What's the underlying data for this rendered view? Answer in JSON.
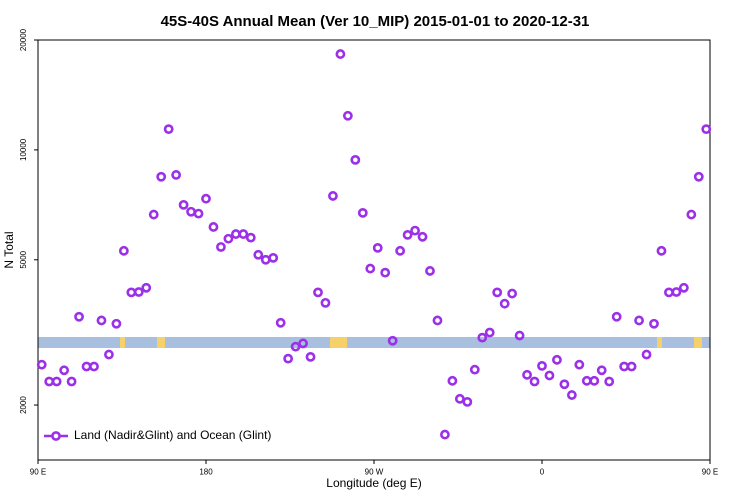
{
  "chart_data": {
    "type": "scatter",
    "title": "45S-40S Annual Mean (Ver 10_MIP)   2015-01-01 to 2020-12-31",
    "x_label": "Longitude (deg E)",
    "y_label": "N Total",
    "x": [
      92,
      96,
      100,
      104,
      108,
      112,
      116,
      120,
      124,
      128,
      132,
      136,
      140,
      144,
      148,
      152,
      156,
      160,
      164,
      168,
      172,
      176,
      180,
      184,
      188,
      192,
      196,
      200,
      204,
      208,
      212,
      216,
      220,
      224,
      228,
      232,
      236,
      240,
      244,
      248,
      252,
      256,
      260,
      264,
      268,
      272,
      276,
      280,
      284,
      288,
      292,
      296,
      300,
      304,
      308,
      312,
      316,
      320,
      324,
      328,
      332,
      336,
      340,
      344,
      348,
      352,
      356,
      360,
      364,
      368,
      372,
      376,
      380,
      384,
      388,
      392,
      396,
      400,
      404,
      408,
      412,
      416,
      420,
      424,
      428,
      432,
      436,
      440,
      444,
      448
    ],
    "series": [
      {
        "name": "Land (Nadir&Glint) and Ocean (Glint)",
        "color": "#9b30e8",
        "values": [
          2580,
          2320,
          2320,
          2490,
          2320,
          3490,
          2550,
          2550,
          3410,
          2750,
          3340,
          5290,
          4070,
          4080,
          4190,
          6650,
          8440,
          11400,
          8540,
          7070,
          6770,
          6690,
          7350,
          6150,
          5420,
          5710,
          5880,
          5880,
          5750,
          5160,
          5000,
          5060,
          3360,
          2680,
          2890,
          2950,
          2710,
          4070,
          3810,
          7480,
          18300,
          12400,
          9390,
          6720,
          4730,
          5390,
          4610,
          3000,
          5290,
          5850,
          6010,
          5780,
          4660,
          3410,
          1660,
          2330,
          2080,
          2040,
          2500,
          3060,
          3160,
          4070,
          3790,
          4040,
          3100,
          2420,
          2320,
          2560,
          2410,
          2660,
          2280,
          2130,
          2580,
          2330,
          2330,
          2490,
          2320,
          3490,
          2550,
          2550,
          3410,
          2750,
          3340,
          5290,
          4070,
          4080,
          4190,
          6650,
          8440,
          11400
        ]
      }
    ],
    "xlim": [
      90,
      450
    ],
    "xticks": [
      {
        "value": 90,
        "label": "90 E"
      },
      180,
      {
        "value": 270,
        "label": "90 W"
      },
      {
        "value": 360,
        "label": "0"
      },
      {
        "value": 450,
        "label": "90 E"
      }
    ],
    "ylim": [
      1414,
      20000
    ],
    "yticks": [
      2000,
      5000,
      10000,
      20000
    ],
    "y_scale": "log",
    "legend": "lower left"
  }
}
